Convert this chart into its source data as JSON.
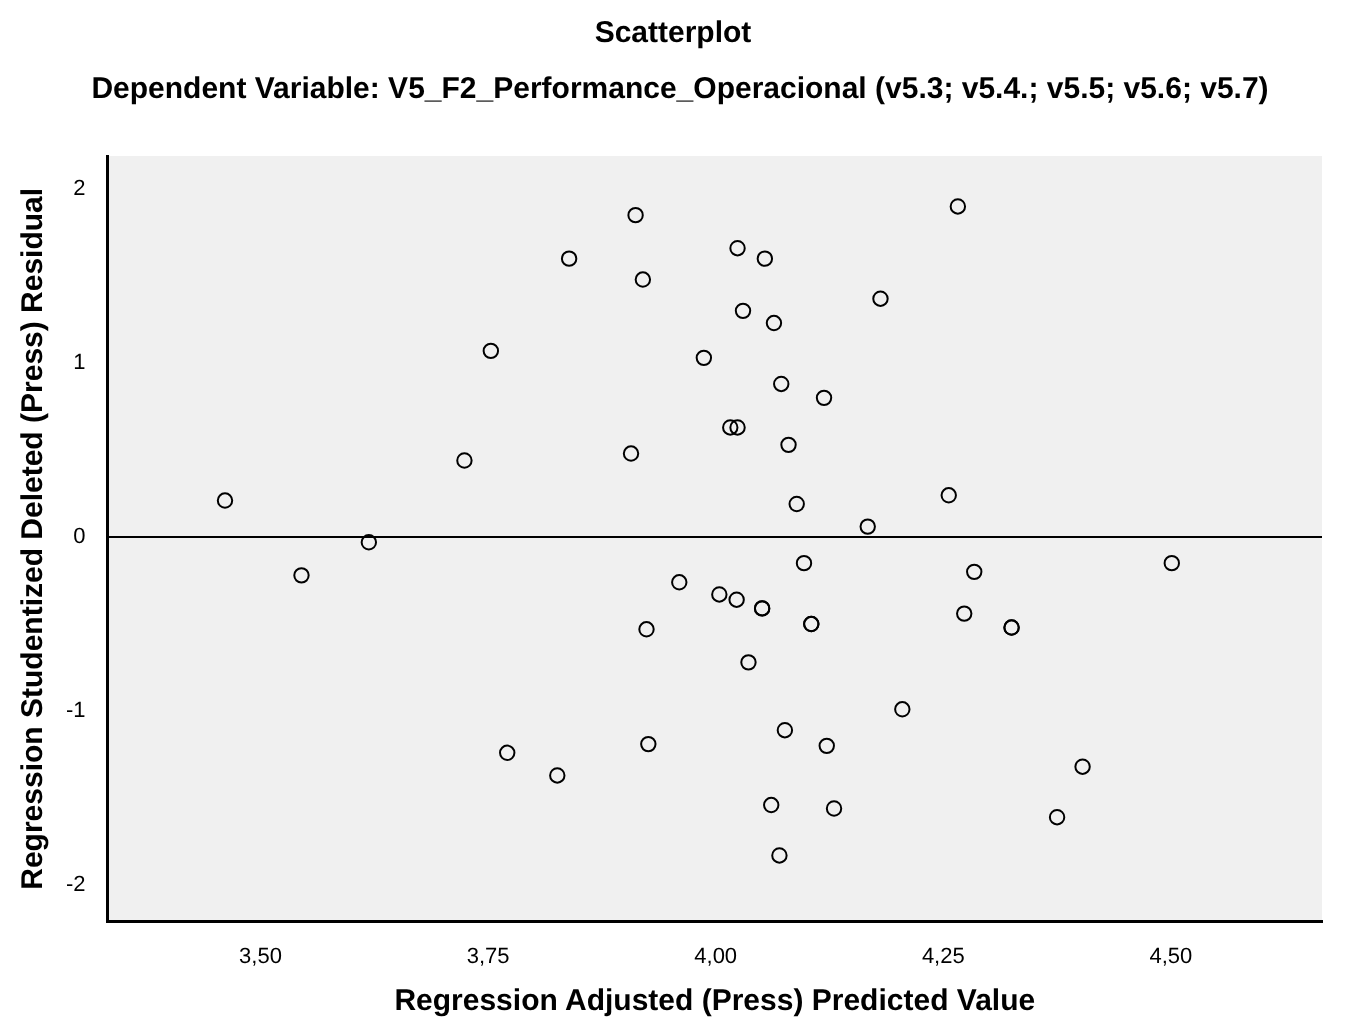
{
  "chart_data": {
    "type": "scatter",
    "title": "Scatterplot",
    "subtitle": "Dependent Variable: V5_F2_Performance_Operacional (v5.3; v5.4.; v5.5; v5.6; v5.7)",
    "xlabel": "Regression Adjusted (Press) Predicted Value",
    "ylabel": "Regression Studentized Deleted (Press) Residual",
    "series": [
      {
        "color": "#000000",
        "x": [
          3.912,
          4.266,
          3.839,
          4.024,
          4.054,
          3.92,
          4.181,
          4.03,
          4.064,
          3.753,
          3.987,
          4.072,
          4.119,
          4.016,
          4.024,
          4.08,
          3.907,
          3.724,
          3.461,
          4.256,
          4.089,
          4.167,
          3.619,
          3.545,
          3.96,
          4.097,
          4.284,
          4.501,
          4.004,
          4.023,
          4.051,
          4.051,
          4.105,
          4.105,
          4.273,
          4.325,
          4.325,
          3.924,
          4.036,
          4.205,
          4.076,
          3.771,
          3.926,
          4.122,
          4.403,
          3.826,
          4.061,
          4.13,
          4.375,
          4.07
        ],
        "values": [
          1.85,
          1.9,
          1.6,
          1.66,
          1.6,
          1.48,
          1.37,
          1.3,
          1.23,
          1.07,
          1.03,
          0.88,
          0.8,
          0.63,
          0.63,
          0.53,
          0.48,
          0.44,
          0.21,
          0.24,
          0.19,
          0.06,
          -0.03,
          -0.22,
          -0.26,
          -0.15,
          -0.2,
          -0.15,
          -0.33,
          -0.36,
          -0.41,
          -0.41,
          -0.5,
          -0.5,
          -0.44,
          -0.52,
          -0.52,
          -0.53,
          -0.72,
          -0.99,
          -1.11,
          -1.24,
          -1.19,
          -1.2,
          -1.32,
          -1.37,
          -1.54,
          -1.56,
          -1.61,
          -1.83
        ]
      }
    ],
    "xlim": [
      3.332,
      4.666
    ],
    "xticks": [
      {
        "value": 3.5,
        "label": "3,50"
      },
      {
        "value": 3.75,
        "label": "3,75"
      },
      {
        "value": 4.0,
        "label": "4,00"
      },
      {
        "value": 4.25,
        "label": "4,25"
      },
      {
        "value": 4.5,
        "label": "4,50"
      }
    ],
    "ylim": [
      -2.21,
      2.19
    ],
    "yticks": [
      -2,
      -1,
      0,
      1,
      2
    ],
    "ref_lines": [
      {
        "axis": "y",
        "value": 0,
        "color": "#000000"
      }
    ],
    "grid": false,
    "legend": false,
    "marker": "circle"
  }
}
